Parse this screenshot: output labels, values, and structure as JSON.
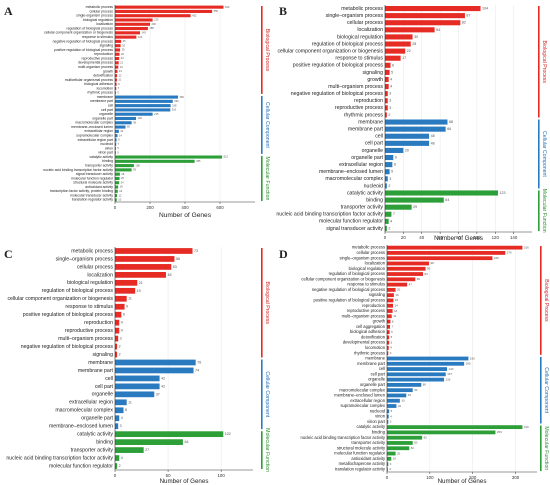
{
  "colors": {
    "bp": "#e62a24",
    "cc": "#2a7ac0",
    "mf": "#2c9f39",
    "bp_text": "#d91f1f",
    "cc_text": "#1f6db8",
    "mf_text": "#2a8f2a"
  },
  "chart_data": [
    {
      "panel": "A",
      "type": "bar",
      "orientation": "horizontal",
      "xlabel": "Number of Genes",
      "xlim": [
        0,
        800
      ],
      "xticks": [
        0,
        200,
        400,
        600
      ],
      "groups": [
        {
          "name": "Biological Process",
          "color": "bp",
          "items": [
            {
              "label": "metabolic process",
              "value": 620
            },
            {
              "label": "cellular process",
              "value": 555
            },
            {
              "label": "single-organism process",
              "value": 432
            },
            {
              "label": "biological regulation",
              "value": 215
            },
            {
              "label": "localization",
              "value": 200
            },
            {
              "label": "regulation of biological process",
              "value": 188
            },
            {
              "label": "cellular component organization or biogenesis",
              "value": 143
            },
            {
              "label": "response to stimulus",
              "value": 122
            },
            {
              "label": "negative regulation of biological process",
              "value": 35
            },
            {
              "label": "signaling",
              "value": 32
            },
            {
              "label": "positive regulation of biological process",
              "value": 29
            },
            {
              "label": "reproduction",
              "value": 26
            },
            {
              "label": "reproductive process",
              "value": 24
            },
            {
              "label": "developmental process",
              "value": 21
            },
            {
              "label": "multi-organism process",
              "value": 19
            },
            {
              "label": "growth",
              "value": 14
            },
            {
              "label": "detoxification",
              "value": 12
            },
            {
              "label": "multicellular organismal process",
              "value": 11
            },
            {
              "label": "biological adhesion",
              "value": 9
            },
            {
              "label": "locomotion",
              "value": 7
            },
            {
              "label": "rhythmic process",
              "value": 5
            }
          ]
        },
        {
          "name": "Cellular Component",
          "color": "cc",
          "items": [
            {
              "label": "membrane",
              "value": 360
            },
            {
              "label": "membrane part",
              "value": 330
            },
            {
              "label": "cell",
              "value": 318
            },
            {
              "label": "cell part",
              "value": 316
            },
            {
              "label": "organelle",
              "value": 215
            },
            {
              "label": "organelle part",
              "value": 120
            },
            {
              "label": "macromolecular complex",
              "value": 95
            },
            {
              "label": "membrane–enclosed lumen",
              "value": 60
            },
            {
              "label": "extracellular region",
              "value": 22
            },
            {
              "label": "supramolecular complex",
              "value": 14
            },
            {
              "label": "extracellular region part",
              "value": 9
            },
            {
              "label": "nucleoid",
              "value": 7
            },
            {
              "label": "virion",
              "value": 5
            },
            {
              "label": "virion part",
              "value": 5
            }
          ]
        },
        {
          "name": "Molecular Function",
          "color": "mf",
          "items": [
            {
              "label": "catalytic activity",
              "value": 612
            },
            {
              "label": "binding",
              "value": 455
            },
            {
              "label": "transporter activity",
              "value": 108
            },
            {
              "label": "nucleic acid binding transcription factor activity",
              "value": 95
            },
            {
              "label": "signal transducer activity",
              "value": 28
            },
            {
              "label": "molecular function regulator",
              "value": 26
            },
            {
              "label": "structural molecule activity",
              "value": 24
            },
            {
              "label": "antioxidant activity",
              "value": 18
            },
            {
              "label": "transcription factor activity, protein binding",
              "value": 16
            },
            {
              "label": "molecular transducer activity",
              "value": 12
            },
            {
              "label": "translation regulator activity",
              "value": 10
            }
          ]
        }
      ]
    },
    {
      "panel": "B",
      "type": "bar",
      "orientation": "horizontal",
      "xlabel": "Number of Genes",
      "xlim": [
        0,
        160
      ],
      "xticks": [
        0,
        20,
        40,
        60,
        80,
        100,
        120,
        140
      ],
      "groups": [
        {
          "name": "Biological Process",
          "color": "bp",
          "items": [
            {
              "label": "metabolic process",
              "value": 104
            },
            {
              "label": "single–organism process",
              "value": 87
            },
            {
              "label": "cellular process",
              "value": 82
            },
            {
              "label": "localization",
              "value": 54
            },
            {
              "label": "biological regulation",
              "value": 30
            },
            {
              "label": "regulation of biological process",
              "value": 28
            },
            {
              "label": "cellular component organization or biogenesis",
              "value": 22
            },
            {
              "label": "response to stimulus",
              "value": 17
            },
            {
              "label": "positive regulation of biological process",
              "value": 6
            },
            {
              "label": "signaling",
              "value": 5
            },
            {
              "label": "growth",
              "value": 4
            },
            {
              "label": "multi–organism process",
              "value": 4
            },
            {
              "label": "negative regulation of biological process",
              "value": 3
            },
            {
              "label": "reproduction",
              "value": 3
            },
            {
              "label": "reproductive process",
              "value": 3
            },
            {
              "label": "rhythmic process",
              "value": 2
            }
          ]
        },
        {
          "name": "Cellular Component",
          "color": "cc",
          "items": [
            {
              "label": "membrane",
              "value": 68
            },
            {
              "label": "membrane part",
              "value": 66
            },
            {
              "label": "cell",
              "value": 48
            },
            {
              "label": "cell part",
              "value": 48
            },
            {
              "label": "organelle",
              "value": 20
            },
            {
              "label": "organelle part",
              "value": 9
            },
            {
              "label": "extracellular region",
              "value": 8
            },
            {
              "label": "membrane–enclosed lumen",
              "value": 5
            },
            {
              "label": "macromolecular complex",
              "value": 3
            },
            {
              "label": "nucleoid",
              "value": 2
            }
          ]
        },
        {
          "name": "Molecular Function",
          "color": "mf",
          "items": [
            {
              "label": "catalytic activity",
              "value": 123
            },
            {
              "label": "binding",
              "value": 64
            },
            {
              "label": "transporter activity",
              "value": 29
            },
            {
              "label": "nucleic acid binding transcription factor activity",
              "value": 7
            },
            {
              "label": "molecular function regulator",
              "value": 4
            },
            {
              "label": "signal transducer activity",
              "value": 2
            }
          ]
        }
      ]
    },
    {
      "panel": "C",
      "type": "bar",
      "orientation": "horizontal",
      "xlabel": "Number of Genes",
      "xlim": [
        0,
        130
      ],
      "xticks": [
        0,
        50,
        100
      ],
      "groups": [
        {
          "name": "Biological Process",
          "color": "bp",
          "items": [
            {
              "label": "metabolic process",
              "value": 73
            },
            {
              "label": "single–organism process",
              "value": 56
            },
            {
              "label": "cellular process",
              "value": 53
            },
            {
              "label": "localization",
              "value": 48
            },
            {
              "label": "biological regulation",
              "value": 21
            },
            {
              "label": "regulation of biological process",
              "value": 19
            },
            {
              "label": "cellular component organization or biogenesis",
              "value": 11
            },
            {
              "label": "response to stimulus",
              "value": 9
            },
            {
              "label": "positive regulation of biological process",
              "value": 6
            },
            {
              "label": "reproduction",
              "value": 4
            },
            {
              "label": "reproductive process",
              "value": 4
            },
            {
              "label": "multi–organism process",
              "value": 3
            },
            {
              "label": "negative regulation of biological process",
              "value": 2
            },
            {
              "label": "signaling",
              "value": 2
            }
          ]
        },
        {
          "name": "Cellular Component",
          "color": "cc",
          "items": [
            {
              "label": "membrane",
              "value": 76
            },
            {
              "label": "membrane part",
              "value": 74
            },
            {
              "label": "cell",
              "value": 42
            },
            {
              "label": "cell part",
              "value": 42
            },
            {
              "label": "organelle",
              "value": 37
            },
            {
              "label": "extracellular region",
              "value": 11
            },
            {
              "label": "macromolecular complex",
              "value": 8
            },
            {
              "label": "organelle part",
              "value": 4
            },
            {
              "label": "membrane–enclosed lumen",
              "value": 3
            }
          ]
        },
        {
          "name": "Molecular Function",
          "color": "mf",
          "items": [
            {
              "label": "catalytic activity",
              "value": 102
            },
            {
              "label": "binding",
              "value": 64
            },
            {
              "label": "transporter activity",
              "value": 27
            },
            {
              "label": "nucleic acid binding transcription factor activity",
              "value": 4
            },
            {
              "label": "molecular function regulator",
              "value": 2
            }
          ]
        }
      ]
    },
    {
      "panel": "D",
      "type": "bar",
      "orientation": "horizontal",
      "xlabel": "Number of Genes",
      "xlim": [
        0,
        350
      ],
      "xticks": [
        0,
        100,
        200,
        300
      ],
      "groups": [
        {
          "name": "Biological Process",
          "color": "bp",
          "items": [
            {
              "label": "metabolic process",
              "value": 316
            },
            {
              "label": "cellular process",
              "value": 276
            },
            {
              "label": "single–organism process",
              "value": 246
            },
            {
              "label": "localization",
              "value": 98
            },
            {
              "label": "biological regulation",
              "value": 90
            },
            {
              "label": "regulation of biological process",
              "value": 84
            },
            {
              "label": "cellular component organization or biogenesis",
              "value": 66
            },
            {
              "label": "response to stimulus",
              "value": 47
            },
            {
              "label": "negative regulation of biological process",
              "value": 20
            },
            {
              "label": "signaling",
              "value": 16
            },
            {
              "label": "positive regulation of biological process",
              "value": 15
            },
            {
              "label": "reproduction",
              "value": 14
            },
            {
              "label": "reproductive process",
              "value": 13
            },
            {
              "label": "multi–organism process",
              "value": 11
            },
            {
              "label": "growth",
              "value": 8
            },
            {
              "label": "cell aggregation",
              "value": 7
            },
            {
              "label": "biological adhesion",
              "value": 6
            },
            {
              "label": "detoxification",
              "value": 5
            },
            {
              "label": "developmental process",
              "value": 5
            },
            {
              "label": "locomotion",
              "value": 4
            },
            {
              "label": "rhythmic process",
              "value": 3
            }
          ]
        },
        {
          "name": "Cellular Component",
          "color": "cc",
          "items": [
            {
              "label": "membrane",
              "value": 190
            },
            {
              "label": "membrane part",
              "value": 180
            },
            {
              "label": "cell",
              "value": 140
            },
            {
              "label": "cell part",
              "value": 137
            },
            {
              "label": "organelle",
              "value": 133
            },
            {
              "label": "organelle part",
              "value": 80
            },
            {
              "label": "macromolecular complex",
              "value": 60
            },
            {
              "label": "membrane–enclosed lumen",
              "value": 45
            },
            {
              "label": "extracellular region",
              "value": 30
            },
            {
              "label": "supramolecular complex",
              "value": 22
            },
            {
              "label": "nucleoid",
              "value": 5
            },
            {
              "label": "virion",
              "value": 4
            },
            {
              "label": "virion part",
              "value": 3
            }
          ]
        },
        {
          "name": "Molecular Function",
          "color": "mf",
          "items": [
            {
              "label": "catalytic activity",
              "value": 316
            },
            {
              "label": "binding",
              "value": 253
            },
            {
              "label": "nucleic acid binding transcription factor activity",
              "value": 82
            },
            {
              "label": "transporter activity",
              "value": 60
            },
            {
              "label": "structural molecule activity",
              "value": 52
            },
            {
              "label": "molecular function regulator",
              "value": 20
            },
            {
              "label": "antioxidant activity",
              "value": 10
            },
            {
              "label": "metallochaperone activity",
              "value": 3
            },
            {
              "label": "translation regulator activity",
              "value": 2
            }
          ]
        }
      ]
    }
  ]
}
